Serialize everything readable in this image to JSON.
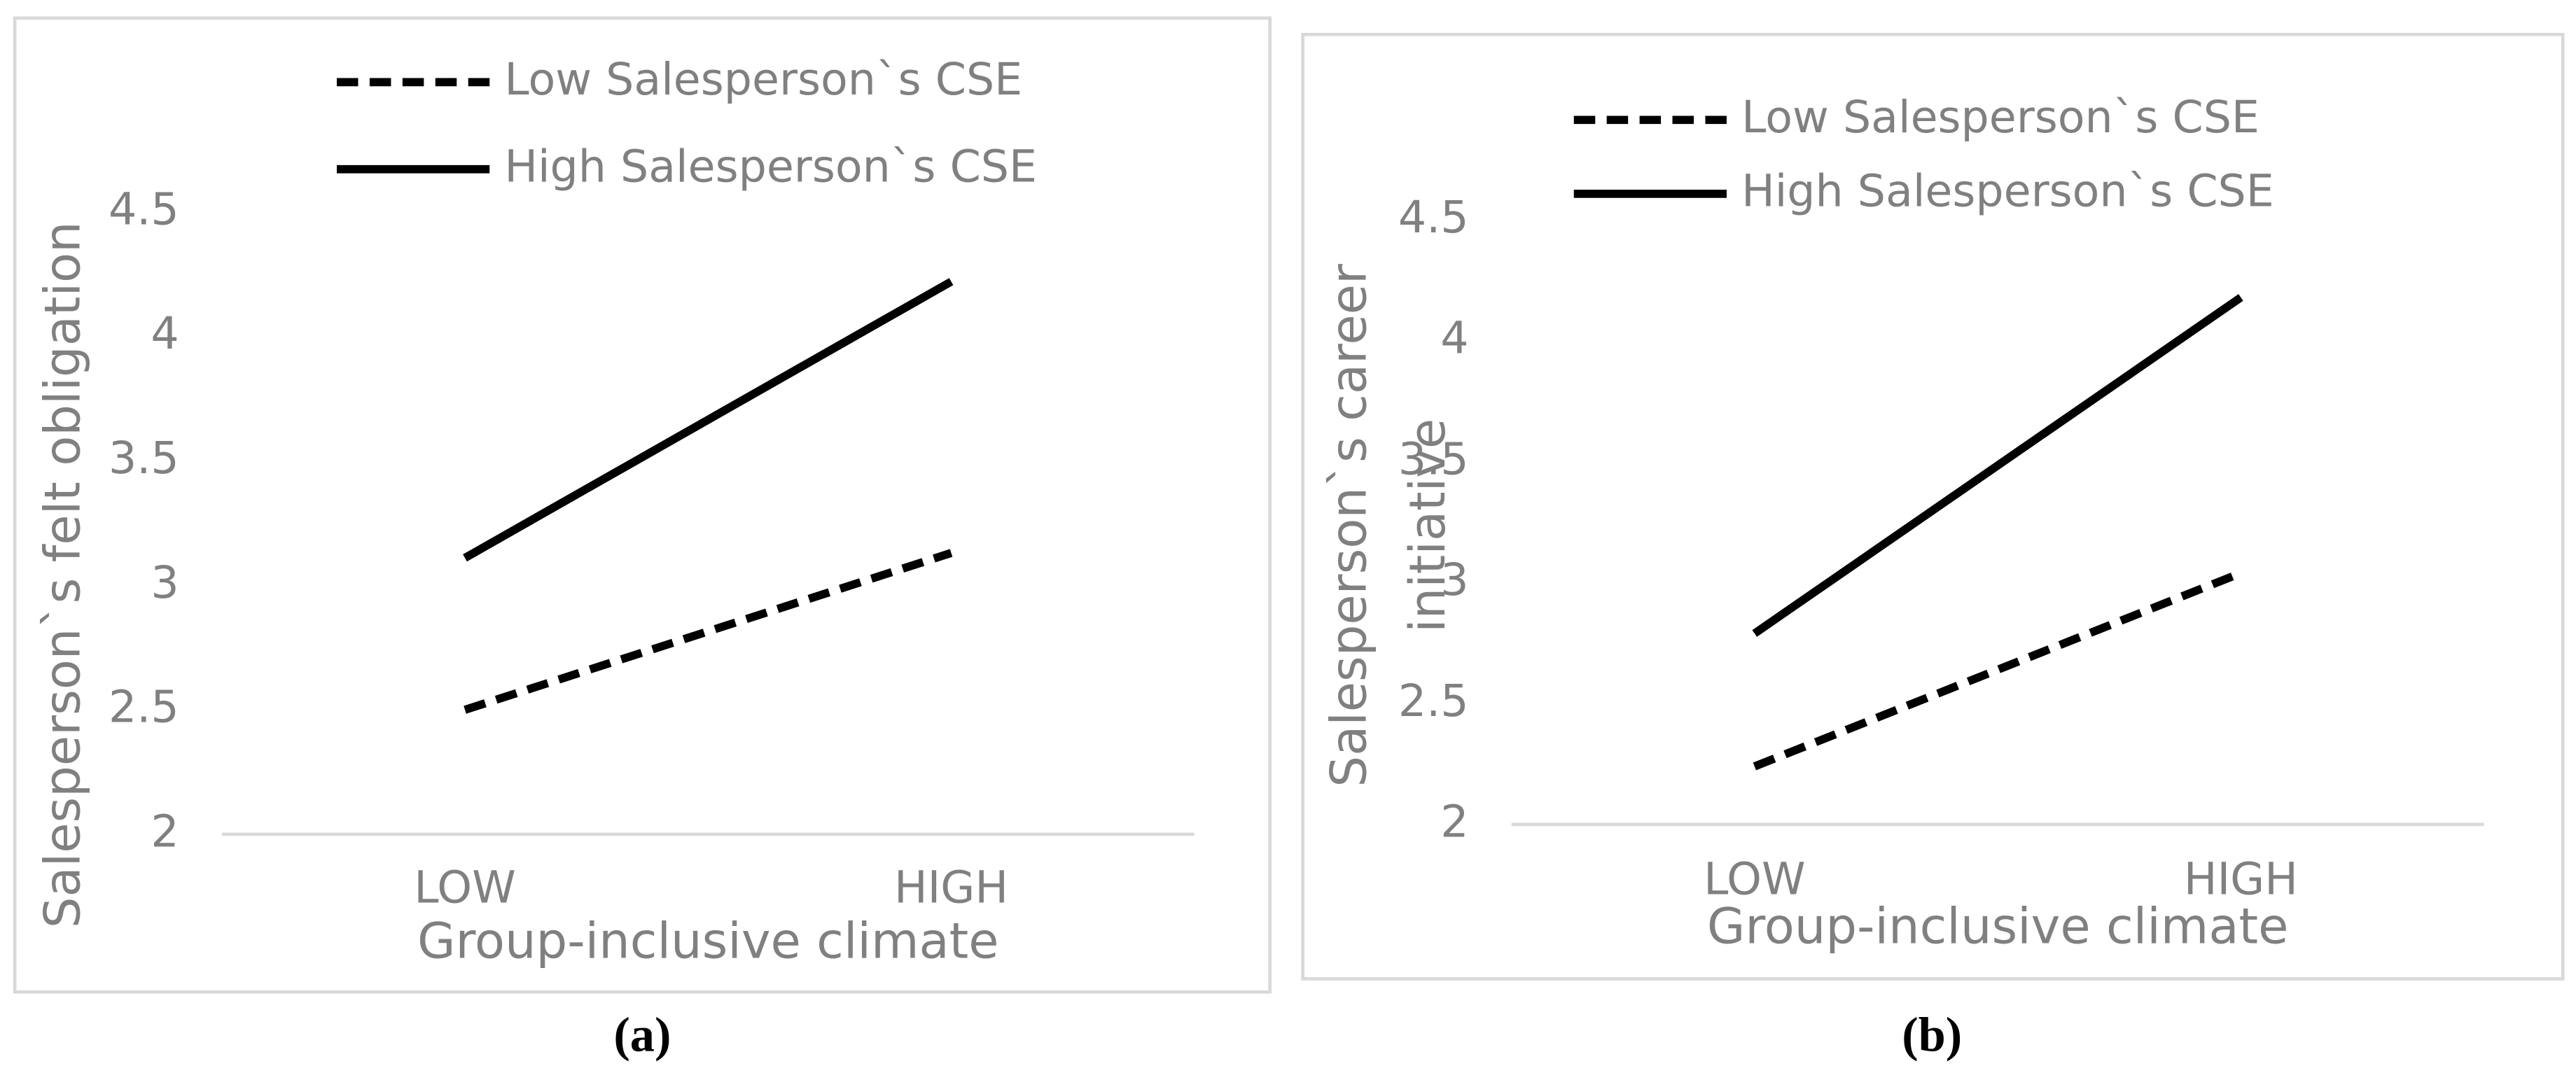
{
  "chart_data": [
    {
      "type": "line",
      "caption": "(a)",
      "x_label": "Group-inclusive climate",
      "y_label": [
        "Salesperson`s felt obligation"
      ],
      "categories": [
        "LOW",
        "HIGH"
      ],
      "ylim": [
        2,
        4.5
      ],
      "yticks": [
        2,
        2.5,
        3,
        3.5,
        4,
        4.5
      ],
      "series": [
        {
          "name": "Low Salesperson`s CSE",
          "color": "#000000",
          "dash": true,
          "values": [
            2.5,
            3.13
          ]
        },
        {
          "name": "High Salesperson`s CSE",
          "color": "#000000",
          "dash": false,
          "values": [
            3.11,
            4.22
          ]
        }
      ]
    },
    {
      "type": "line",
      "caption": "(b)",
      "x_label": "Group-inclusive climate",
      "y_label": [
        "Salesperson`s career",
        "initiative"
      ],
      "categories": [
        "LOW",
        "HIGH"
      ],
      "ylim": [
        2,
        4.5
      ],
      "yticks": [
        2,
        2.5,
        3,
        3.5,
        4,
        4.5
      ],
      "series": [
        {
          "name": "Low Salesperson`s CSE",
          "color": "#000000",
          "dash": true,
          "values": [
            2.24,
            3.04
          ]
        },
        {
          "name": "High Salesperson`s CSE",
          "color": "#000000",
          "dash": false,
          "values": [
            2.79,
            4.18
          ]
        }
      ]
    }
  ]
}
